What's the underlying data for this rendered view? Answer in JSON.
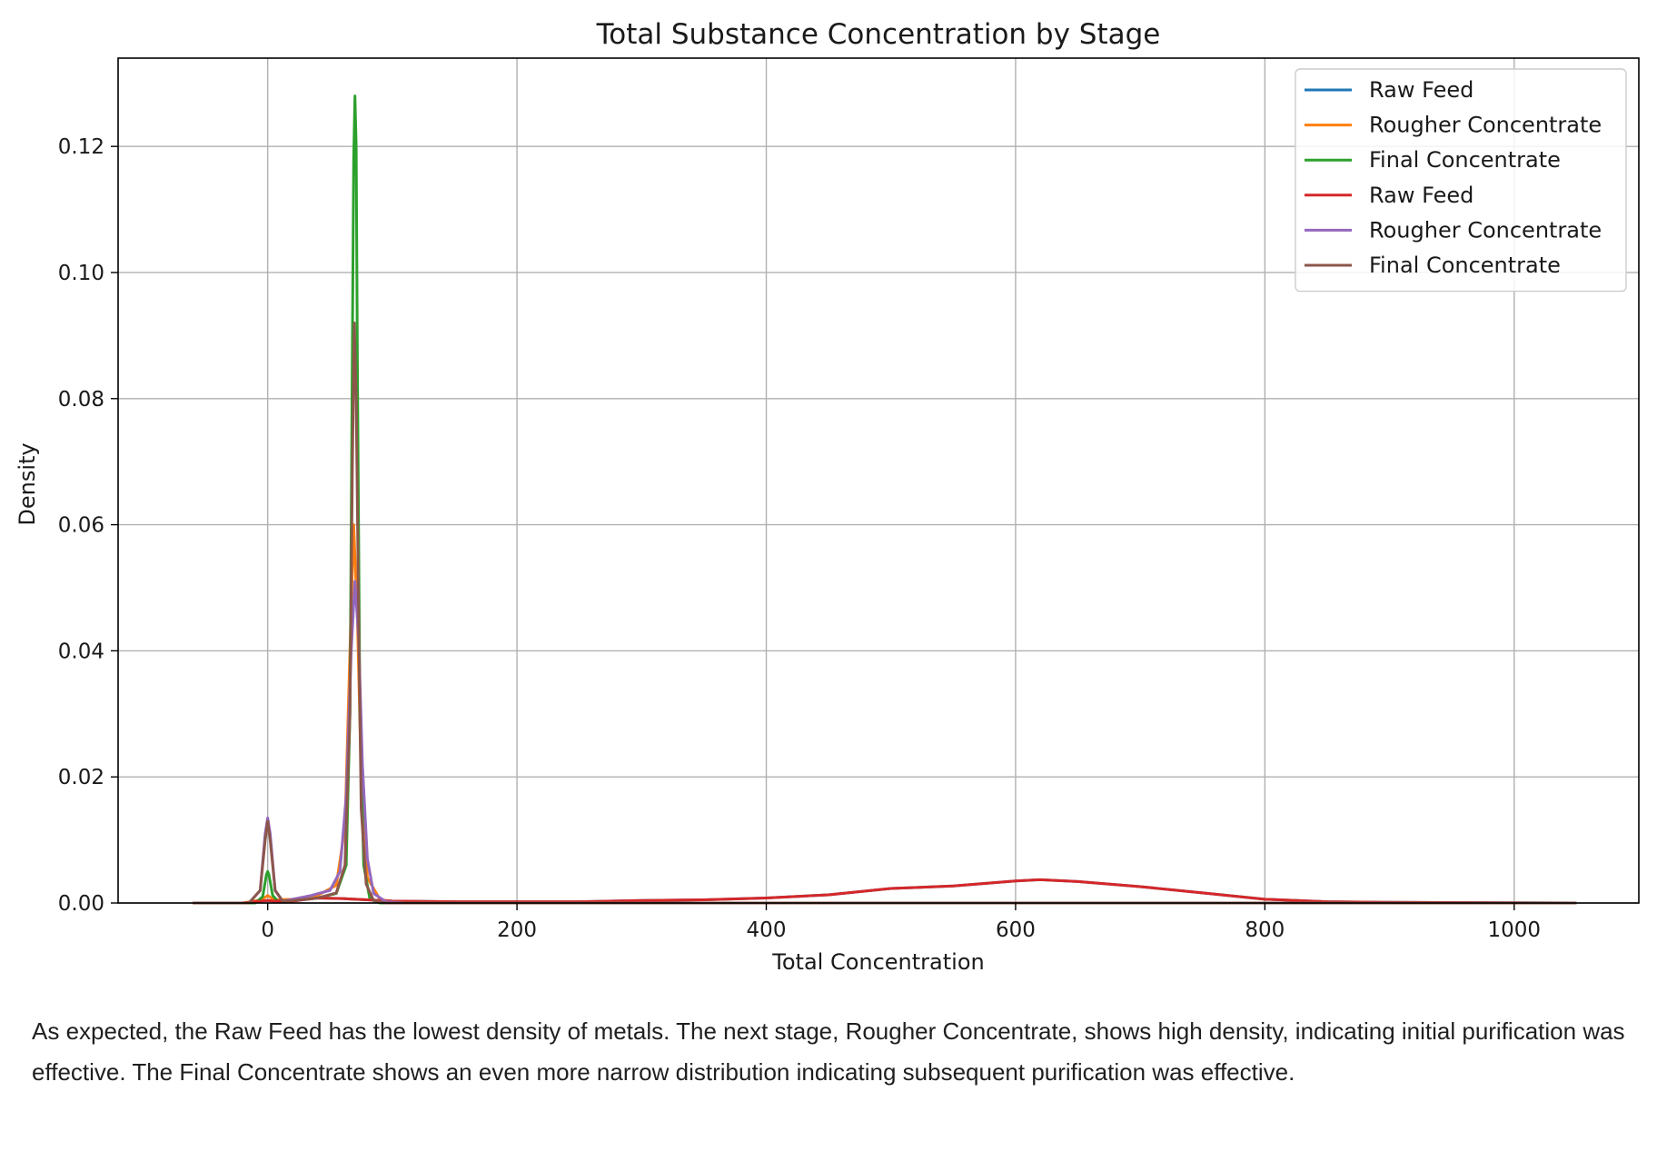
{
  "chart_data": {
    "type": "line",
    "title": "Total Substance Concentration by Stage",
    "xlabel": "Total Concentration",
    "ylabel": "Density",
    "xlim": [
      -120,
      1100
    ],
    "ylim": [
      0,
      0.134
    ],
    "xticks": [
      0,
      200,
      400,
      600,
      800,
      1000
    ],
    "xtick_labels": [
      "0",
      "200",
      "400",
      "600",
      "800",
      "1000"
    ],
    "yticks": [
      0,
      0.02,
      0.04,
      0.06,
      0.08,
      0.1,
      0.12
    ],
    "ytick_labels": [
      "0.00",
      "0.02",
      "0.04",
      "0.06",
      "0.08",
      "0.10",
      "0.12"
    ],
    "grid": true,
    "legend_position": "top-right",
    "series": [
      {
        "name": "Raw Feed",
        "color": "#1f77b4",
        "points": [
          [
            -60,
            0
          ],
          [
            -20,
            0
          ],
          [
            -5,
            0.0003
          ],
          [
            0,
            0.0004
          ],
          [
            5,
            0.0003
          ],
          [
            20,
            0.0003
          ],
          [
            40,
            0.0008
          ],
          [
            60,
            0.0007
          ],
          [
            80,
            0.0005
          ],
          [
            100,
            0.0003
          ],
          [
            150,
            0.0002
          ],
          [
            200,
            0.0002
          ],
          [
            250,
            0.0002
          ],
          [
            300,
            0.0004
          ],
          [
            350,
            0.0005
          ],
          [
            400,
            0.0008
          ],
          [
            450,
            0.0013
          ],
          [
            500,
            0.0023
          ],
          [
            550,
            0.0027
          ],
          [
            600,
            0.0035
          ],
          [
            620,
            0.0037
          ],
          [
            650,
            0.0034
          ],
          [
            700,
            0.0026
          ],
          [
            750,
            0.0016
          ],
          [
            800,
            0.0006
          ],
          [
            850,
            0.0002
          ],
          [
            900,
            0.0001
          ],
          [
            1050,
            0
          ]
        ]
      },
      {
        "name": "Rougher Concentrate",
        "color": "#ff7f0e",
        "points": [
          [
            -60,
            0
          ],
          [
            -20,
            0
          ],
          [
            -5,
            0.0005
          ],
          [
            0,
            0.0012
          ],
          [
            5,
            0.0005
          ],
          [
            20,
            0.0006
          ],
          [
            40,
            0.0012
          ],
          [
            55,
            0.0028
          ],
          [
            62,
            0.012
          ],
          [
            66,
            0.04
          ],
          [
            69,
            0.06
          ],
          [
            72,
            0.045
          ],
          [
            75,
            0.02
          ],
          [
            80,
            0.004
          ],
          [
            90,
            0.0006
          ],
          [
            100,
            0.0002
          ],
          [
            150,
            0
          ],
          [
            1050,
            0
          ]
        ]
      },
      {
        "name": "Final Concentrate",
        "color": "#2ca02c",
        "points": [
          [
            -60,
            0
          ],
          [
            -10,
            0
          ],
          [
            -4,
            0.001
          ],
          [
            -1,
            0.0045
          ],
          [
            0,
            0.005
          ],
          [
            1,
            0.0045
          ],
          [
            4,
            0.0012
          ],
          [
            8,
            0.0003
          ],
          [
            20,
            0.0004
          ],
          [
            40,
            0.0008
          ],
          [
            55,
            0.0015
          ],
          [
            63,
            0.006
          ],
          [
            66,
            0.03
          ],
          [
            68,
            0.09
          ],
          [
            69,
            0.118
          ],
          [
            70,
            0.128
          ],
          [
            71,
            0.12
          ],
          [
            72,
            0.085
          ],
          [
            74,
            0.03
          ],
          [
            77,
            0.006
          ],
          [
            82,
            0.0006
          ],
          [
            90,
            0
          ],
          [
            1050,
            0
          ]
        ]
      },
      {
        "name": "Raw Feed",
        "color": "#d62728",
        "points": [
          [
            -60,
            0
          ],
          [
            -20,
            0
          ],
          [
            -5,
            0.0003
          ],
          [
            0,
            0.0004
          ],
          [
            5,
            0.0003
          ],
          [
            20,
            0.0003
          ],
          [
            40,
            0.0008
          ],
          [
            60,
            0.0007
          ],
          [
            80,
            0.0005
          ],
          [
            100,
            0.0003
          ],
          [
            150,
            0.0002
          ],
          [
            200,
            0.0002
          ],
          [
            250,
            0.0002
          ],
          [
            300,
            0.0004
          ],
          [
            350,
            0.0005
          ],
          [
            400,
            0.0008
          ],
          [
            450,
            0.0013
          ],
          [
            500,
            0.0023
          ],
          [
            550,
            0.0027
          ],
          [
            600,
            0.0035
          ],
          [
            620,
            0.0037
          ],
          [
            650,
            0.0034
          ],
          [
            700,
            0.0026
          ],
          [
            750,
            0.0016
          ],
          [
            800,
            0.0006
          ],
          [
            850,
            0.0002
          ],
          [
            900,
            0.0001
          ],
          [
            1050,
            0
          ]
        ]
      },
      {
        "name": "Rougher Concentrate",
        "color": "#9467bd",
        "points": [
          [
            -60,
            0
          ],
          [
            -15,
            0
          ],
          [
            -6,
            0.002
          ],
          [
            -2,
            0.011
          ],
          [
            0,
            0.0135
          ],
          [
            2,
            0.011
          ],
          [
            6,
            0.002
          ],
          [
            12,
            0.0003
          ],
          [
            20,
            0.0006
          ],
          [
            35,
            0.0012
          ],
          [
            50,
            0.002
          ],
          [
            58,
            0.005
          ],
          [
            63,
            0.017
          ],
          [
            67,
            0.04
          ],
          [
            70,
            0.051
          ],
          [
            73,
            0.042
          ],
          [
            76,
            0.022
          ],
          [
            80,
            0.007
          ],
          [
            85,
            0.0015
          ],
          [
            95,
            0.0002
          ],
          [
            110,
            0
          ],
          [
            1050,
            0
          ]
        ]
      },
      {
        "name": "Final Concentrate",
        "color": "#8c564b",
        "points": [
          [
            -60,
            0
          ],
          [
            -15,
            0
          ],
          [
            -6,
            0.002
          ],
          [
            -2,
            0.01
          ],
          [
            0,
            0.013
          ],
          [
            2,
            0.01
          ],
          [
            6,
            0.002
          ],
          [
            12,
            0.0003
          ],
          [
            20,
            0.0004
          ],
          [
            40,
            0.0008
          ],
          [
            55,
            0.0016
          ],
          [
            62,
            0.006
          ],
          [
            66,
            0.03
          ],
          [
            68,
            0.07
          ],
          [
            69.5,
            0.092
          ],
          [
            71,
            0.08
          ],
          [
            73,
            0.045
          ],
          [
            75,
            0.015
          ],
          [
            79,
            0.003
          ],
          [
            85,
            0.0004
          ],
          [
            95,
            0
          ],
          [
            1050,
            0
          ]
        ]
      }
    ]
  },
  "commentary": "As expected, the Raw Feed has the lowest density of metals. The next stage, Rougher Concentrate, shows high density, indicating initial purification was effective. The Final Concentrate shows an even more narrow distribution indicating subsequent purification was effective."
}
